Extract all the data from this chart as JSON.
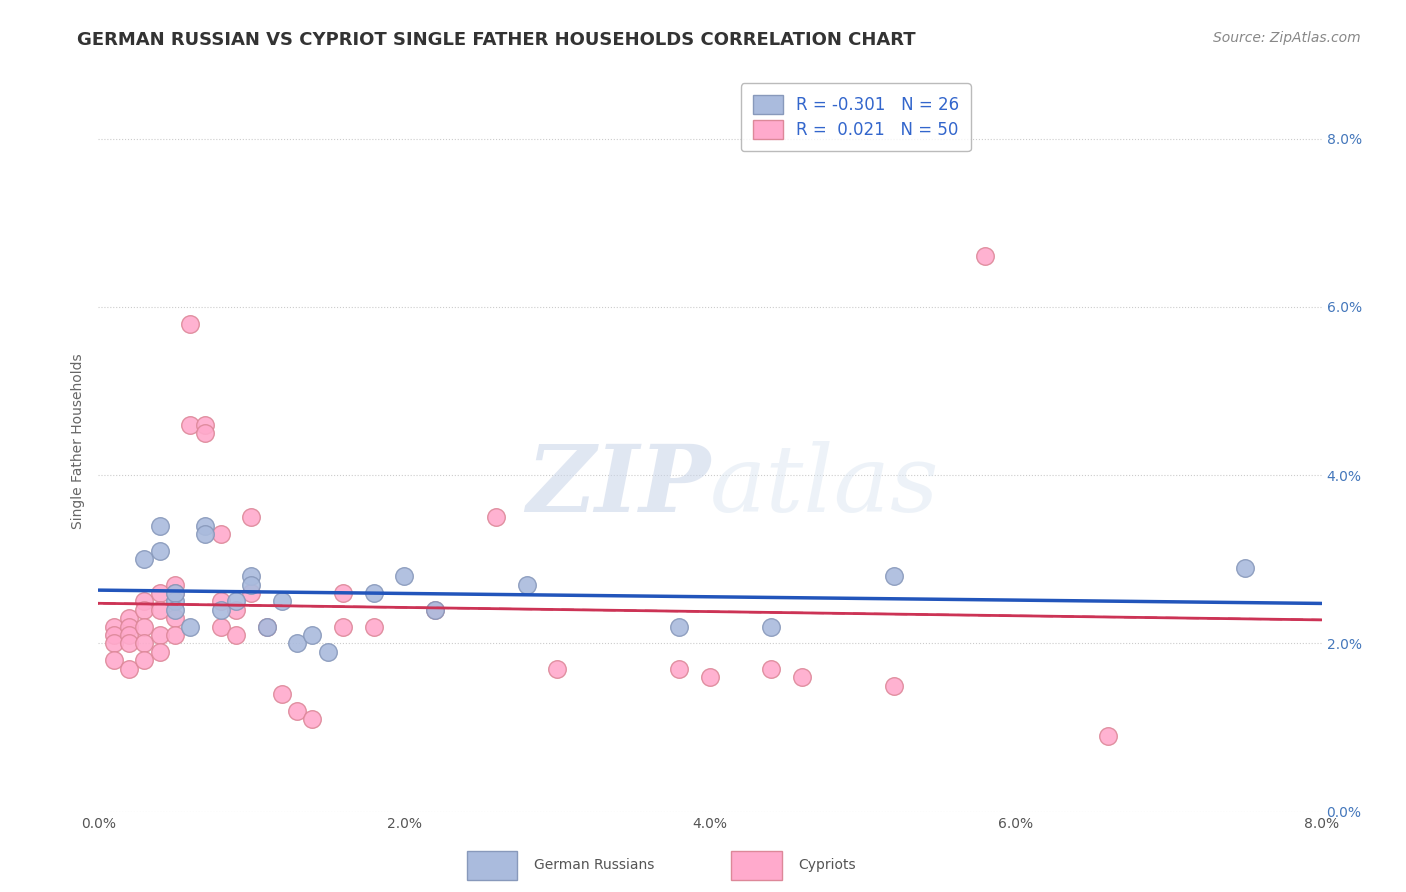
{
  "title": "GERMAN RUSSIAN VS CYPRIOT SINGLE FATHER HOUSEHOLDS CORRELATION CHART",
  "source_text": "Source: ZipAtlas.com",
  "ylabel": "Single Father Households",
  "watermark_zip": "ZIP",
  "watermark_atlas": "atlas",
  "xlim": [
    0.0,
    0.08
  ],
  "ylim": [
    0.0,
    0.088
  ],
  "xticks": [
    0.0,
    0.02,
    0.04,
    0.06,
    0.08
  ],
  "yticks": [
    0.0,
    0.02,
    0.04,
    0.06,
    0.08
  ],
  "background_color": "#ffffff",
  "grid_color": "#cccccc",
  "blue_R": -0.301,
  "blue_N": 26,
  "pink_R": 0.021,
  "pink_N": 50,
  "blue_color": "#aabbdd",
  "pink_color": "#ffaacc",
  "blue_edge_color": "#8899bb",
  "pink_edge_color": "#dd8899",
  "blue_line_color": "#2255bb",
  "pink_line_color": "#cc3355",
  "blue_scatter_x": [
    0.003,
    0.004,
    0.004,
    0.005,
    0.005,
    0.005,
    0.006,
    0.007,
    0.007,
    0.008,
    0.009,
    0.01,
    0.01,
    0.011,
    0.012,
    0.013,
    0.014,
    0.015,
    0.018,
    0.02,
    0.022,
    0.028,
    0.038,
    0.044,
    0.052,
    0.075
  ],
  "blue_scatter_y": [
    0.03,
    0.031,
    0.034,
    0.025,
    0.026,
    0.024,
    0.022,
    0.034,
    0.033,
    0.024,
    0.025,
    0.028,
    0.027,
    0.022,
    0.025,
    0.02,
    0.021,
    0.019,
    0.026,
    0.028,
    0.024,
    0.027,
    0.022,
    0.022,
    0.028,
    0.029
  ],
  "pink_scatter_x": [
    0.001,
    0.001,
    0.001,
    0.001,
    0.002,
    0.002,
    0.002,
    0.002,
    0.002,
    0.003,
    0.003,
    0.003,
    0.003,
    0.003,
    0.004,
    0.004,
    0.004,
    0.004,
    0.005,
    0.005,
    0.005,
    0.005,
    0.006,
    0.006,
    0.007,
    0.007,
    0.008,
    0.008,
    0.008,
    0.009,
    0.009,
    0.01,
    0.01,
    0.011,
    0.012,
    0.013,
    0.014,
    0.016,
    0.016,
    0.018,
    0.022,
    0.026,
    0.03,
    0.038,
    0.04,
    0.044,
    0.046,
    0.052,
    0.058,
    0.066
  ],
  "pink_scatter_y": [
    0.022,
    0.021,
    0.02,
    0.018,
    0.023,
    0.022,
    0.021,
    0.02,
    0.017,
    0.025,
    0.024,
    0.022,
    0.02,
    0.018,
    0.026,
    0.024,
    0.021,
    0.019,
    0.027,
    0.026,
    0.023,
    0.021,
    0.046,
    0.058,
    0.046,
    0.045,
    0.033,
    0.025,
    0.022,
    0.024,
    0.021,
    0.035,
    0.026,
    0.022,
    0.014,
    0.012,
    0.011,
    0.026,
    0.022,
    0.022,
    0.024,
    0.035,
    0.017,
    0.017,
    0.016,
    0.017,
    0.016,
    0.015,
    0.066,
    0.009
  ],
  "title_fontsize": 13,
  "axis_label_fontsize": 10,
  "tick_fontsize": 10,
  "legend_fontsize": 12,
  "source_fontsize": 10
}
